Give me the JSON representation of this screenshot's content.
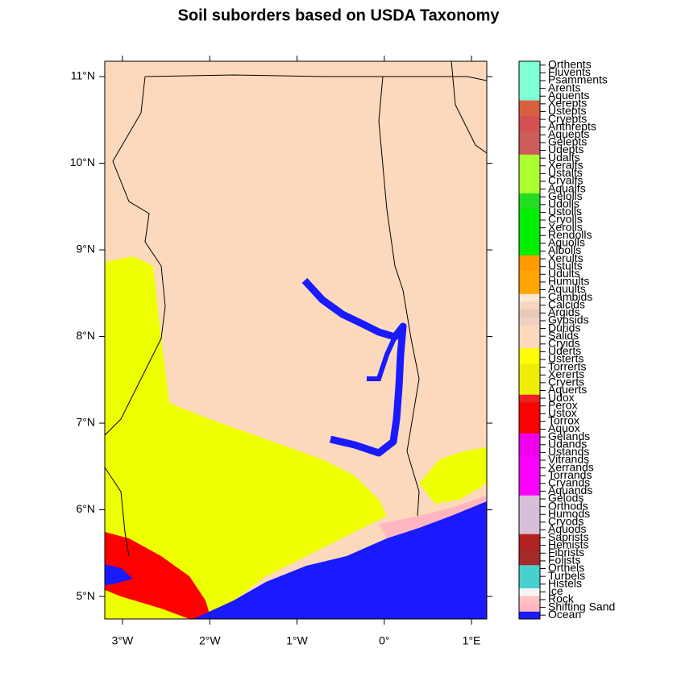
{
  "title": "Soil suborders based on USDA Taxonomy",
  "map": {
    "xlim": [
      -3.203,
      1.175
    ],
    "ylim": [
      4.74,
      11.177
    ],
    "xticks": [
      {
        "value": -3,
        "label": "3°W"
      },
      {
        "value": -2,
        "label": "2°W"
      },
      {
        "value": -1,
        "label": "1°W"
      },
      {
        "value": 0,
        "label": "0°"
      },
      {
        "value": 1,
        "label": "1°E"
      }
    ],
    "yticks": [
      {
        "value": 5,
        "label": "5°N"
      },
      {
        "value": 6,
        "label": "6°N"
      },
      {
        "value": 7,
        "label": "7°N"
      },
      {
        "value": 8,
        "label": "8°N"
      },
      {
        "value": 9,
        "label": "9°N"
      },
      {
        "value": 10,
        "label": "10°N"
      },
      {
        "value": 11,
        "label": "11°N"
      }
    ]
  },
  "legend": {
    "entries": [
      {
        "name": "Ocean",
        "color": "#1a1aff"
      },
      {
        "name": "Shifting Sand",
        "color": "#ffb6c1"
      },
      {
        "name": "Rock",
        "color": "#ffc1c1"
      },
      {
        "name": "Ice",
        "color": "#f5f5f5"
      },
      {
        "name": "Histels",
        "color": "#48d1cc"
      },
      {
        "name": "Turbels",
        "color": "#48d1cc"
      },
      {
        "name": "Orthels",
        "color": "#48d1cc"
      },
      {
        "name": "Folists",
        "color": "#a52a2a"
      },
      {
        "name": "Fibrists",
        "color": "#a52a2a"
      },
      {
        "name": "Hemists",
        "color": "#b22222"
      },
      {
        "name": "Saprists",
        "color": "#b22222"
      },
      {
        "name": "Aquods",
        "color": "#d8bfd8"
      },
      {
        "name": "Cryods",
        "color": "#d8bfd8"
      },
      {
        "name": "Humods",
        "color": "#d8bfd8"
      },
      {
        "name": "Orthods",
        "color": "#d8bfd8"
      },
      {
        "name": "Gelods",
        "color": "#d8bfd8"
      },
      {
        "name": "Aquands",
        "color": "#ff00ff"
      },
      {
        "name": "Cryands",
        "color": "#ff00ff"
      },
      {
        "name": "Torrands",
        "color": "#ff00ff"
      },
      {
        "name": "Xerrands",
        "color": "#ff00ff"
      },
      {
        "name": "Vitrands",
        "color": "#ff00ff"
      },
      {
        "name": "Ustands",
        "color": "#ee00ee"
      },
      {
        "name": "Udands",
        "color": "#ee00ee"
      },
      {
        "name": "Gelands",
        "color": "#ee00ee"
      },
      {
        "name": "Aquox",
        "color": "#ff0000"
      },
      {
        "name": "Torrox",
        "color": "#ff0000"
      },
      {
        "name": "Ustox",
        "color": "#ff0000"
      },
      {
        "name": "Perox",
        "color": "#ff0000"
      },
      {
        "name": "Udox",
        "color": "#ee2222"
      },
      {
        "name": "Aquerts",
        "color": "#eeee00"
      },
      {
        "name": "Cryerts",
        "color": "#eeee00"
      },
      {
        "name": "Xererts",
        "color": "#eeee00"
      },
      {
        "name": "Torrerts",
        "color": "#eeee00"
      },
      {
        "name": "Usterts",
        "color": "#ffff00"
      },
      {
        "name": "Uderts",
        "color": "#ffff00"
      },
      {
        "name": "Cryids",
        "color": "#fcd9bc"
      },
      {
        "name": "Salids",
        "color": "#fcd9bc"
      },
      {
        "name": "Durids",
        "color": "#fcd9bc"
      },
      {
        "name": "Gypsids",
        "color": "#f0d0c0"
      },
      {
        "name": "Argids",
        "color": "#e8c8b8"
      },
      {
        "name": "Calcids",
        "color": "#f5d5c0"
      },
      {
        "name": "Cambids",
        "color": "#fde6d2"
      },
      {
        "name": "Aquults",
        "color": "#ffa500"
      },
      {
        "name": "Humults",
        "color": "#ffa500"
      },
      {
        "name": "Udults",
        "color": "#ffa500"
      },
      {
        "name": "Ustults",
        "color": "#ff9a00"
      },
      {
        "name": "Xerults",
        "color": "#ff9a00"
      },
      {
        "name": "Albolls",
        "color": "#00ee00"
      },
      {
        "name": "Aquolls",
        "color": "#00ee00"
      },
      {
        "name": "Rendolls",
        "color": "#00ee00"
      },
      {
        "name": "Xerolls",
        "color": "#00ee00"
      },
      {
        "name": "Cryolls",
        "color": "#00ee00"
      },
      {
        "name": "Ustolls",
        "color": "#00ee00"
      },
      {
        "name": "Udolls",
        "color": "#22dd22"
      },
      {
        "name": "Gelolls",
        "color": "#22dd22"
      },
      {
        "name": "Aqualfs",
        "color": "#adff2f"
      },
      {
        "name": "Cryalfs",
        "color": "#adff2f"
      },
      {
        "name": "Ustalfs",
        "color": "#adff2f"
      },
      {
        "name": "Xeralfs",
        "color": "#adff2f"
      },
      {
        "name": "Udalfs",
        "color": "#adff2f"
      },
      {
        "name": "Udepts",
        "color": "#cd5c5c"
      },
      {
        "name": "Gelepts",
        "color": "#cd5c5c"
      },
      {
        "name": "Aquepts",
        "color": "#cd5c5c"
      },
      {
        "name": "Anthrepts",
        "color": "#d55050"
      },
      {
        "name": "Cryepts",
        "color": "#d55050"
      },
      {
        "name": "Ustepts",
        "color": "#d86040"
      },
      {
        "name": "Xerepts",
        "color": "#d86040"
      },
      {
        "name": "Aquents",
        "color": "#7fffd4"
      },
      {
        "name": "Arents",
        "color": "#7fffd4"
      },
      {
        "name": "Psamments",
        "color": "#7fffd4"
      },
      {
        "name": "Fluvents",
        "color": "#7fffd4"
      },
      {
        "name": "Orthents",
        "color": "#7fffd4"
      }
    ]
  }
}
